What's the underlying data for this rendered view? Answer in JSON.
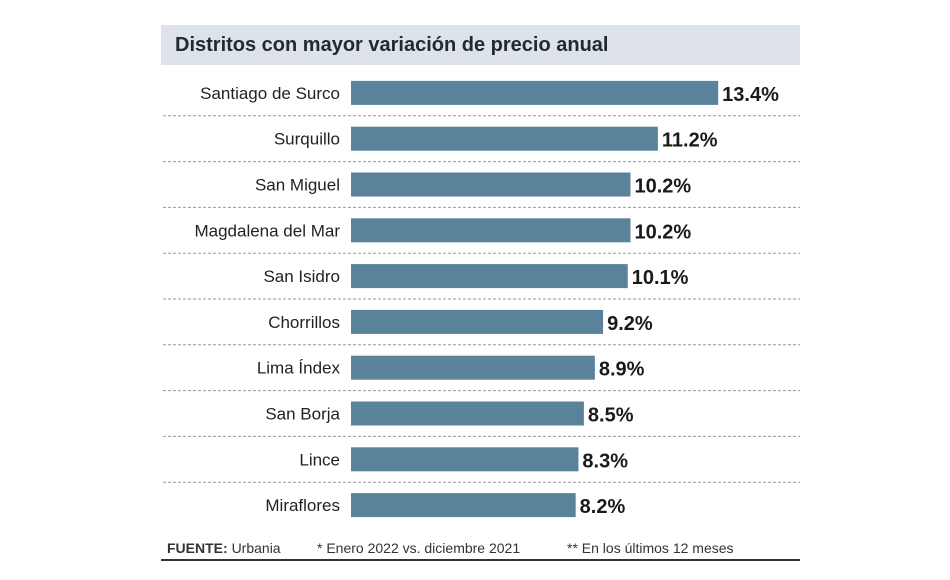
{
  "chart_data": {
    "type": "bar",
    "orientation": "horizontal",
    "title": "Distritos con mayor variación de precio anual",
    "categories": [
      "Santiago de Surco",
      "Surquillo",
      "San Miguel",
      "Magdalena del Mar",
      "San Isidro",
      "Chorrillos",
      "Lima Índex",
      "San Borja",
      "Lince",
      "Miraflores"
    ],
    "values": [
      13.4,
      11.2,
      10.2,
      10.2,
      10.1,
      9.2,
      8.9,
      8.5,
      8.3,
      8.2
    ],
    "value_labels": [
      "13.4%",
      "11.2%",
      "10.2%",
      "10.2%",
      "10.1%",
      "9.2%",
      "8.9%",
      "8.5%",
      "8.3%",
      "8.2%"
    ],
    "bar_color": "#5a829b",
    "grid": false
  },
  "footer": {
    "source_label": "FUENTE:",
    "source_value": "Urbania",
    "note1": "* Enero 2022 vs. diciembre 2021",
    "note2": "** En los últimos 12 meses"
  },
  "colors": {
    "title_background": "#dde3e9",
    "separator": "#999999"
  }
}
